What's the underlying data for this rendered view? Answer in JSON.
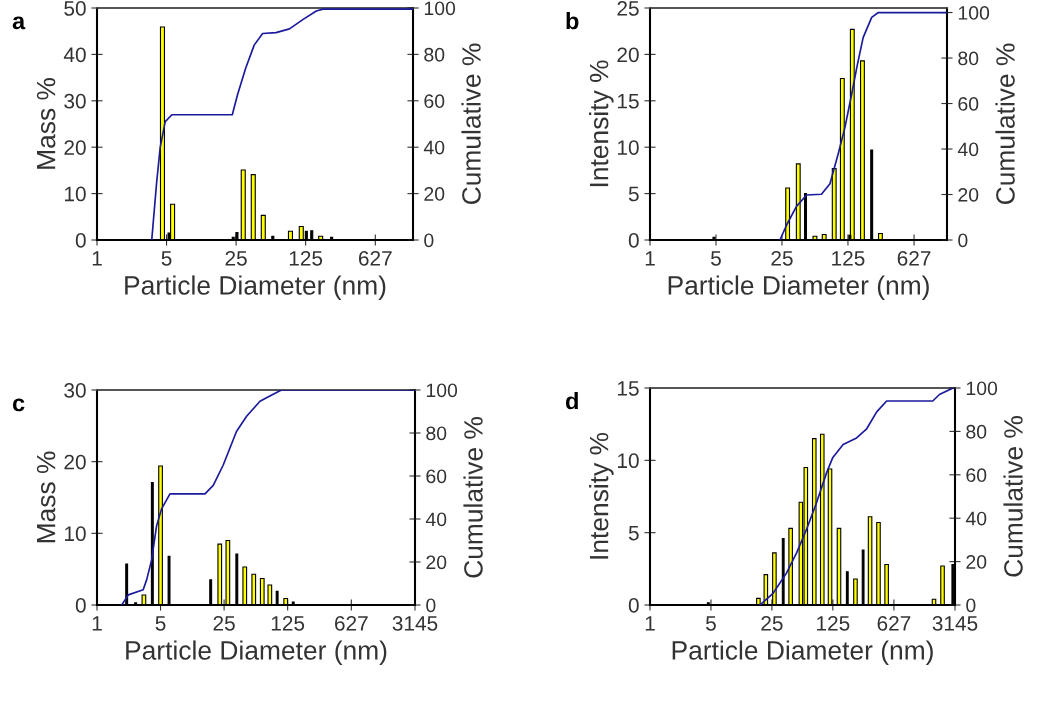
{
  "chart_data": [
    {
      "type": "bar",
      "title": "a",
      "xlabel": "Particle Diameter (nm)",
      "ylabel": "Mass %",
      "y2label": "Cumulative %",
      "log": "x",
      "xlim": [
        1,
        1500
      ],
      "xticks": [
        1,
        5,
        25,
        125,
        627
      ],
      "ylim": [
        0,
        50
      ],
      "yticks": [
        0,
        10,
        20,
        30,
        40,
        50
      ],
      "y2lim": [
        0,
        100
      ],
      "y2ticks": [
        0,
        20,
        40,
        60,
        80,
        100
      ],
      "series": [
        {
          "color": "#ffff00",
          "x": [
            4.55,
            5.75,
            29.5,
            37.2,
            46.9,
            88,
            113,
            177
          ],
          "values": [
            45.9,
            7.7,
            15.1,
            14.1,
            5.3,
            1.9,
            2.9,
            0.8
          ]
        },
        {
          "color": "#000000",
          "x": [
            5.3,
            23.4,
            25.5,
            58.5,
            127,
            144,
            228
          ],
          "values": [
            1.5,
            0.6,
            1.6,
            0.8,
            1.9,
            2.0,
            0.6
          ]
        },
        {
          "type": "line",
          "axis": "y2",
          "color": "#1a1a9c",
          "x": [
            3.55,
            3.98,
            4.32,
            4.85,
            5.66,
            22.9,
            25.8,
            31.2,
            38,
            46.2,
            63,
            86,
            117,
            160,
            187,
            1500
          ],
          "values": [
            0,
            25,
            40,
            51,
            54,
            54,
            62.5,
            74,
            84,
            89,
            89.4,
            91,
            95,
            98.7,
            99.5,
            99.5
          ]
        }
      ]
    },
    {
      "type": "bar",
      "title": "b",
      "xlabel": "Particle Diameter (nm)",
      "ylabel": "Intensity %",
      "y2label": "Cumulative %",
      "log": "x",
      "xlim": [
        1,
        1400
      ],
      "xticks": [
        1,
        5,
        25,
        125,
        627
      ],
      "ylim": [
        0,
        25
      ],
      "yticks": [
        0,
        5,
        10,
        15,
        20,
        25
      ],
      "y2lim": [
        0,
        102
      ],
      "y2ticks": [
        0,
        20,
        40,
        60,
        80,
        100
      ],
      "series": [
        {
          "color": "#ffff00",
          "x": [
            28.7,
            37.2,
            55.9,
            70,
            89.4,
            109,
            139,
            178,
            276
          ],
          "values": [
            5.6,
            8.2,
            0.4,
            0.6,
            7.7,
            17.4,
            22.7,
            19.3,
            0.7
          ]
        },
        {
          "color": "#000000",
          "x": [
            4.76,
            44.4,
            131,
            223
          ],
          "values": [
            0.3,
            5.0,
            0.5,
            9.7
          ]
        },
        {
          "type": "line",
          "axis": "y2",
          "color": "#1a1a9c",
          "x": [
            23.8,
            28,
            35.6,
            45.6,
            65.5,
            80.6,
            98.6,
            116,
            137,
            155,
            181,
            223,
            262,
            1400
          ],
          "values": [
            0,
            6.6,
            14.8,
            19.8,
            20.1,
            24.7,
            37.9,
            49.4,
            64.2,
            75.8,
            89,
            97.9,
            100,
            100
          ]
        }
      ]
    },
    {
      "type": "bar",
      "title": "c",
      "xlabel": "Particle Diameter (nm)",
      "ylabel": "Mass %",
      "y2label": "Cumulative %",
      "log": "x",
      "xlim": [
        1,
        3145
      ],
      "xticks": [
        1,
        5,
        25,
        125,
        627,
        3145
      ],
      "ylim": [
        0,
        30
      ],
      "yticks": [
        0,
        10,
        20,
        30
      ],
      "y2lim": [
        0,
        100
      ],
      "y2ticks": [
        0,
        20,
        40,
        60,
        80,
        100
      ],
      "series": [
        {
          "color": "#ffff00",
          "x": [
            3.28,
            5.0,
            22.4,
            27.5,
            42.2,
            53,
            65.7,
            79.6,
            119
          ],
          "values": [
            1.4,
            19.4,
            8.5,
            9.0,
            5.3,
            4.3,
            3.7,
            2.8,
            0.9
          ]
        },
        {
          "color": "#000000",
          "x": [
            2.12,
            2.66,
            4.06,
            6.2,
            17.8,
            34.5,
            95.8,
            144
          ],
          "values": [
            5.7,
            0.3,
            17.1,
            6.8,
            3.5,
            7.1,
            1.9,
            0.4
          ]
        },
        {
          "type": "line",
          "axis": "y2",
          "color": "#1a1a9c",
          "x": [
            1.87,
            2.21,
            3.22,
            3.52,
            3.99,
            4.52,
            5.13,
            6.35,
            15.4,
            19,
            24.4,
            34.2,
            44.2,
            62,
            79.6,
            106.8,
            3145
          ],
          "values": [
            0,
            4.7,
            7.1,
            11.8,
            21,
            36.8,
            44.7,
            51.7,
            51.7,
            55.6,
            65,
            80.7,
            87.8,
            94.8,
            97.2,
            100,
            100
          ]
        }
      ]
    },
    {
      "type": "bar",
      "title": "d",
      "xlabel": "Particle Diameter (nm)",
      "ylabel": "Intensity %",
      "y2label": "Cumulative %",
      "log": "x",
      "xlim": [
        1,
        3145
      ],
      "xticks": [
        1,
        5,
        25,
        125,
        627,
        3145
      ],
      "ylim": [
        0,
        15
      ],
      "yticks": [
        0,
        5,
        10,
        15
      ],
      "y2lim": [
        0,
        100
      ],
      "y2ticks": [
        0,
        20,
        40,
        60,
        80,
        100
      ],
      "series": [
        {
          "color": "#ffff00",
          "x": [
            17.5,
            21.3,
            26.7,
            41,
            53.7,
            61.2,
            76.5,
            94.5,
            116,
            147,
            227,
            334,
            417,
            517,
            1806,
            2263
          ],
          "values": [
            0.46,
            2.1,
            3.6,
            5.3,
            7.1,
            9.5,
            11.5,
            11.8,
            9.4,
            5.3,
            1.8,
            6.1,
            5.7,
            2.8,
            0.4,
            2.7
          ]
        },
        {
          "color": "#000000",
          "x": [
            4.66,
            33.7,
            183,
            278,
            2970
          ],
          "values": [
            0.16,
            4.6,
            2.3,
            3.8,
            2.8
          ]
        },
        {
          "type": "line",
          "axis": "y2",
          "color": "#1a1a9c",
          "x": [
            18.2,
            25.8,
            36.7,
            48,
            62.6,
            81,
            106,
            125,
            164,
            234,
            303,
            398,
            517,
            1750,
            2085,
            2970
          ],
          "values": [
            0,
            5.4,
            14.7,
            24,
            35,
            47,
            61,
            68,
            74,
            77,
            81,
            89,
            94,
            94,
            97,
            100
          ]
        }
      ]
    }
  ]
}
